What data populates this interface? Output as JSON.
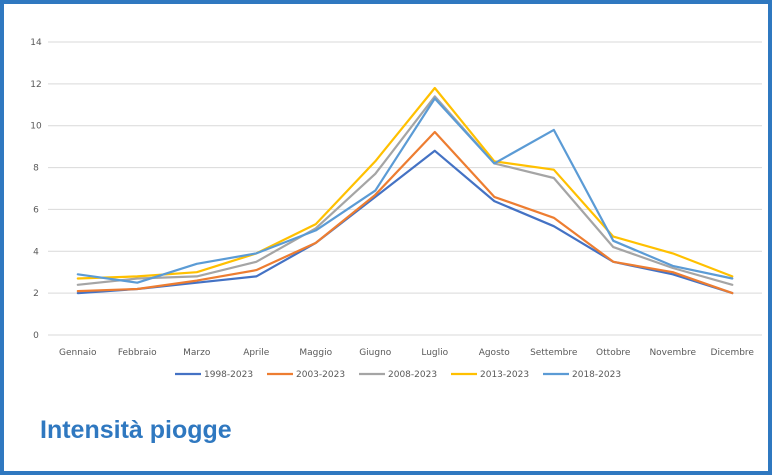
{
  "caption": "Intensità piogge",
  "chart_data": {
    "type": "line",
    "title": "",
    "xlabel": "",
    "ylabel": "",
    "ylim": [
      0,
      14
    ],
    "yticks": [
      0,
      2,
      4,
      6,
      8,
      10,
      12,
      14
    ],
    "grid": true,
    "legend_position": "bottom",
    "categories": [
      "Gennaio",
      "Febbraio",
      "Marzo",
      "Aprile",
      "Maggio",
      "Giugno",
      "Luglio",
      "Agosto",
      "Settembre",
      "Ottobre",
      "Novembre",
      "Dicembre"
    ],
    "series": [
      {
        "name": "1998-2023",
        "color": "#4472c4",
        "values": [
          2.0,
          2.2,
          2.5,
          2.8,
          4.4,
          6.6,
          8.8,
          6.4,
          5.2,
          3.5,
          2.9,
          2.0
        ]
      },
      {
        "name": "2003-2023",
        "color": "#ed7d31",
        "values": [
          2.1,
          2.2,
          2.6,
          3.1,
          4.4,
          6.7,
          9.7,
          6.6,
          5.6,
          3.5,
          3.0,
          2.0
        ]
      },
      {
        "name": "2008-2023",
        "color": "#a5a5a5",
        "values": [
          2.4,
          2.7,
          2.8,
          3.5,
          5.1,
          7.7,
          11.4,
          8.2,
          7.5,
          4.2,
          3.2,
          2.4
        ]
      },
      {
        "name": "2013-2023",
        "color": "#ffc000",
        "values": [
          2.7,
          2.8,
          3.0,
          3.9,
          5.3,
          8.3,
          11.8,
          8.3,
          7.9,
          4.7,
          3.9,
          2.8
        ]
      },
      {
        "name": "2018-2023",
        "color": "#5b9bd5",
        "values": [
          2.9,
          2.5,
          3.4,
          3.9,
          5.0,
          6.9,
          11.3,
          8.2,
          9.8,
          4.5,
          3.3,
          2.7
        ]
      }
    ]
  }
}
